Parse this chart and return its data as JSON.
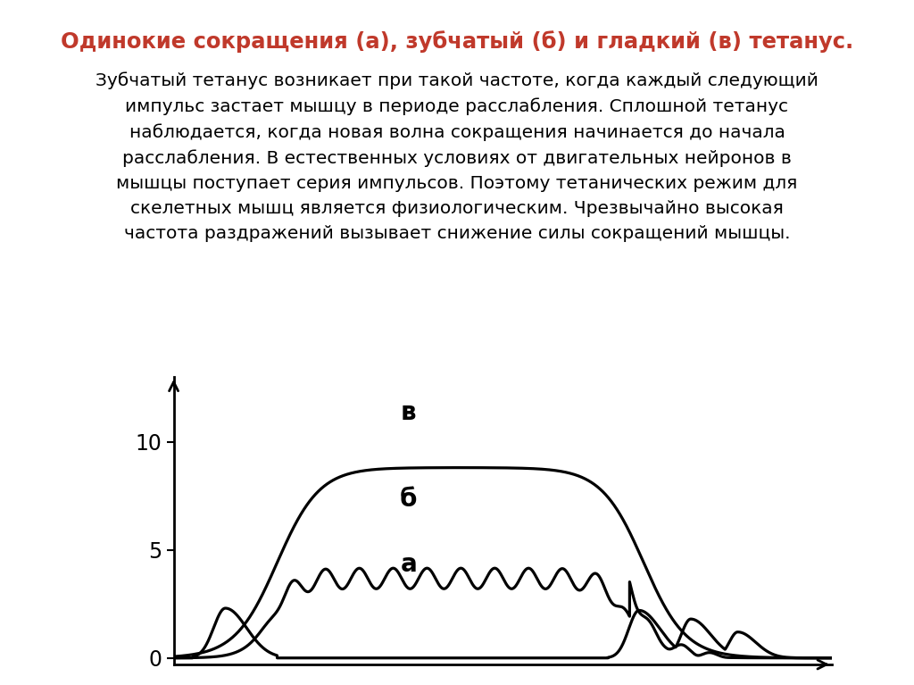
{
  "title_line1": "Одинокие сокращения (а), зубчатый (б) и гладкий (в) тетанус.",
  "title_color": "#c0392b",
  "body_text": "Зубчатый тетанус возникает при такой частоте, когда каждый следующий\nимпульс застает мышцу в периоде расслабления. Сплошной тетанус\nнаблюдается, когда новая волна сокращения начинается до начала\nрасслабления. В естественных условиях от двигательных нейронов в\nмышцы поступает серия импульсов. Поэтому тетанических режим для\nскелетных мышц является физиологическим. Чрезвычайно высокая\nчастота раздражений вызывает снижение силы сокращений мышцы.",
  "body_color": "#000000",
  "background_color": "#ffffff",
  "label_a": "а",
  "label_b": "б",
  "label_v": "в",
  "yticks": [
    0,
    5,
    10
  ],
  "ylim": [
    -0.3,
    13
  ],
  "xlim": [
    0,
    14
  ]
}
